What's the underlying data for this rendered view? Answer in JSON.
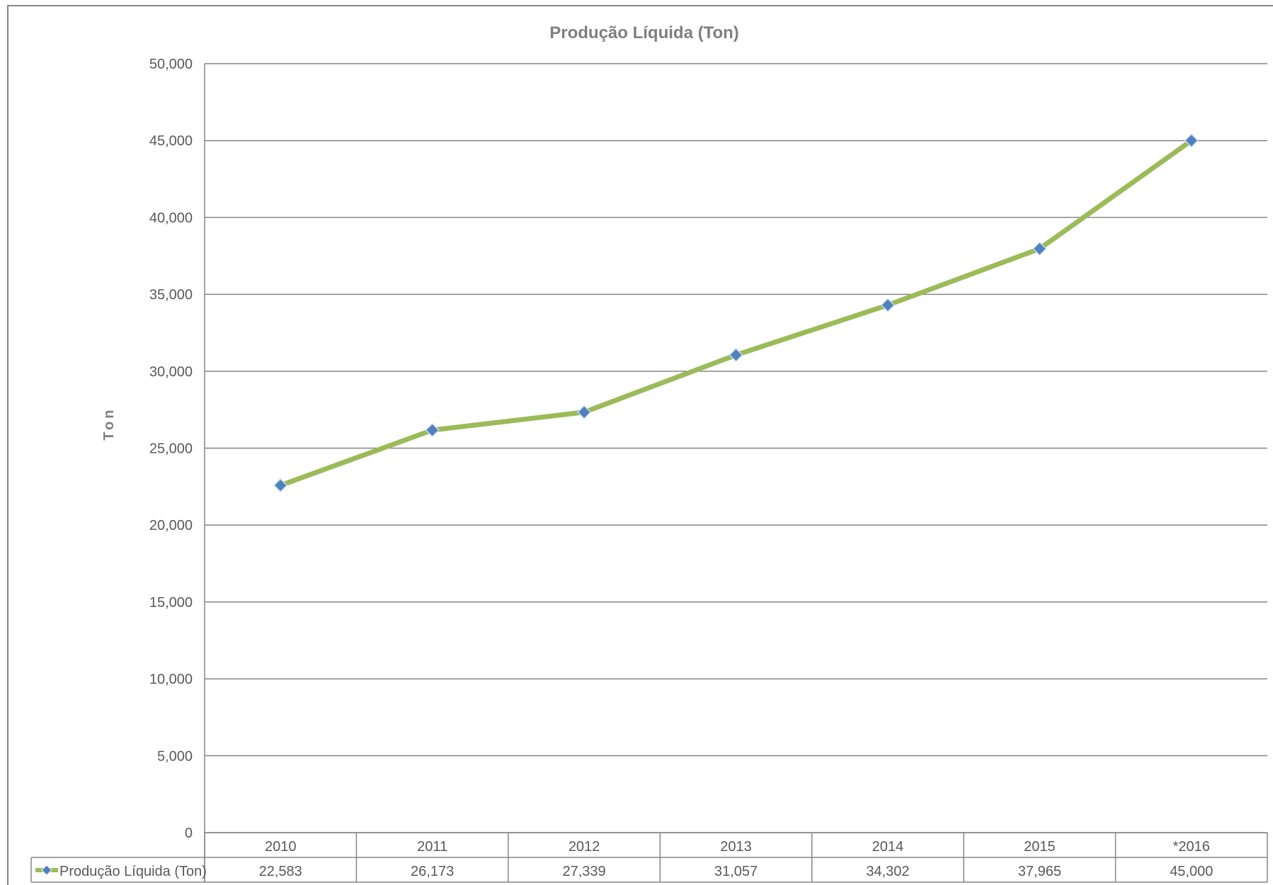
{
  "chart_data": {
    "type": "line",
    "title": "Produção Líquida (Ton)",
    "xlabel": "",
    "ylabel": "Ton",
    "categories": [
      "2010",
      "2011",
      "2012",
      "2013",
      "2014",
      "2015",
      "*2016"
    ],
    "series": [
      {
        "name": "Produção Líquida (Ton)",
        "values": [
          22583,
          26173,
          27339,
          31057,
          34302,
          37965,
          45000
        ],
        "value_labels": [
          "22,583",
          "26,173",
          "27,339",
          "31,057",
          "34,302",
          "37,965",
          "45,000"
        ],
        "line_color": "#9bbb59",
        "marker_color": "#4f81bd",
        "marker": "diamond"
      }
    ],
    "ylim": [
      0,
      50000
    ],
    "yticks": [
      "0",
      "5,000",
      "10,000",
      "15,000",
      "20,000",
      "25,000",
      "30,000",
      "35,000",
      "40,000",
      "45,000",
      "50,000"
    ],
    "grid": true,
    "legend": "data-table-below"
  }
}
